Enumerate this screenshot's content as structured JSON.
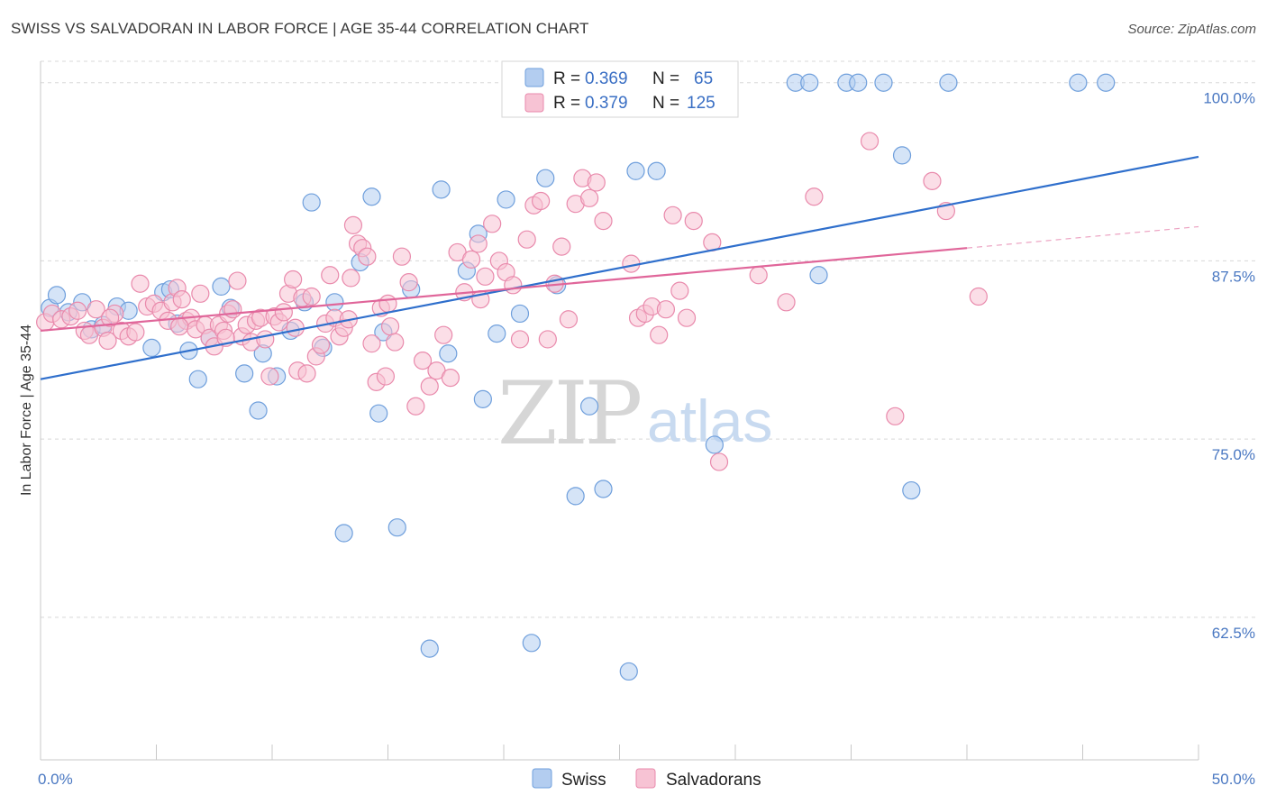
{
  "title": "SWISS VS SALVADORAN IN LABOR FORCE | AGE 35-44 CORRELATION CHART",
  "source": "Source: ZipAtlas.com",
  "watermark": {
    "zip": "ZIP",
    "atlas": "atlas"
  },
  "colors": {
    "swiss_fill": "#b3cdf0",
    "swiss_stroke": "#6f9fdc",
    "swiss_line": "#2f6fcc",
    "salv_fill": "#f7c3d4",
    "salv_stroke": "#e98aac",
    "salv_line": "#e0669a",
    "grid": "#d8d8d8",
    "axis_label": "#4a78c2"
  },
  "legend": {
    "rows": [
      {
        "r_label": "R = ",
        "r_value": "0.369",
        "n_label": "N = ",
        "n_value": "65"
      },
      {
        "r_label": "R = ",
        "r_value": "0.379",
        "n_label": "N = ",
        "n_value": "125"
      }
    ]
  },
  "chart_data": {
    "type": "scatter",
    "ylabel": "In Labor Force | Age 35-44",
    "xlim": [
      0,
      50
    ],
    "ylim": [
      52.5,
      101.5
    ],
    "y_ticks": [
      62.5,
      75.0,
      87.5,
      100.0
    ],
    "y_tick_labels": [
      "62.5%",
      "75.0%",
      "87.5%",
      "100.0%"
    ],
    "x_tick_labels": [
      "0.0%",
      "50.0%"
    ],
    "x_tick_label_values": [
      0,
      50
    ],
    "x_minor_ticks": [
      5,
      10,
      15,
      20,
      25,
      30,
      35,
      40,
      45
    ],
    "grid": true,
    "legend_position": "top-center",
    "series": [
      {
        "name": "Swiss",
        "r": 0.369,
        "n": 65,
        "trend": {
          "x": [
            0,
            50
          ],
          "y": [
            79.2,
            94.8
          ],
          "dashed_from": null
        },
        "points": [
          [
            0.4,
            84.2
          ],
          [
            0.7,
            85.1
          ],
          [
            1.2,
            83.9
          ],
          [
            1.8,
            84.6
          ],
          [
            2.2,
            82.7
          ],
          [
            2.7,
            83.0
          ],
          [
            3.3,
            84.3
          ],
          [
            3.8,
            84.0
          ],
          [
            4.8,
            81.4
          ],
          [
            5.3,
            85.3
          ],
          [
            5.6,
            85.5
          ],
          [
            5.9,
            83.1
          ],
          [
            6.4,
            81.2
          ],
          [
            6.8,
            79.2
          ],
          [
            7.3,
            82.1
          ],
          [
            7.8,
            85.7
          ],
          [
            8.2,
            84.2
          ],
          [
            8.8,
            79.6
          ],
          [
            9.4,
            77.0
          ],
          [
            9.6,
            81.0
          ],
          [
            10.2,
            79.4
          ],
          [
            10.8,
            82.6
          ],
          [
            11.4,
            84.6
          ],
          [
            11.7,
            91.6
          ],
          [
            12.2,
            81.4
          ],
          [
            12.7,
            84.6
          ],
          [
            13.1,
            68.4
          ],
          [
            13.8,
            87.4
          ],
          [
            14.3,
            92.0
          ],
          [
            14.6,
            76.8
          ],
          [
            14.8,
            82.5
          ],
          [
            15.4,
            68.8
          ],
          [
            16.0,
            85.5
          ],
          [
            16.8,
            60.3
          ],
          [
            17.3,
            92.5
          ],
          [
            17.6,
            81.0
          ],
          [
            18.4,
            86.8
          ],
          [
            18.9,
            89.4
          ],
          [
            19.1,
            77.8
          ],
          [
            19.7,
            82.4
          ],
          [
            20.1,
            91.8
          ],
          [
            20.7,
            83.8
          ],
          [
            21.2,
            60.7
          ],
          [
            21.8,
            93.3
          ],
          [
            22.3,
            85.8
          ],
          [
            23.1,
            71.0
          ],
          [
            23.7,
            77.3
          ],
          [
            24.3,
            71.5
          ],
          [
            24.8,
            100.0
          ],
          [
            25.4,
            58.7
          ],
          [
            25.7,
            93.8
          ],
          [
            26.6,
            93.8
          ],
          [
            27.8,
            100.0
          ],
          [
            29.1,
            74.6
          ],
          [
            32.6,
            100.0
          ],
          [
            33.2,
            100.0
          ],
          [
            33.6,
            86.5
          ],
          [
            34.8,
            100.0
          ],
          [
            35.3,
            100.0
          ],
          [
            36.4,
            100.0
          ],
          [
            37.2,
            94.9
          ],
          [
            37.6,
            71.4
          ],
          [
            39.2,
            100.0
          ],
          [
            44.8,
            100.0
          ],
          [
            46.0,
            100.0
          ]
        ]
      },
      {
        "name": "Salvadorans",
        "r": 0.379,
        "n": 125,
        "trend": {
          "x": [
            0,
            40
          ],
          "y": [
            82.6,
            88.4
          ],
          "dashed_to": 50,
          "dashed_end_y": 89.9
        },
        "points": [
          [
            0.2,
            83.2
          ],
          [
            0.5,
            83.8
          ],
          [
            0.9,
            83.4
          ],
          [
            1.3,
            83.6
          ],
          [
            1.6,
            84.0
          ],
          [
            1.9,
            82.6
          ],
          [
            2.1,
            82.3
          ],
          [
            2.4,
            84.1
          ],
          [
            2.7,
            82.8
          ],
          [
            2.9,
            81.9
          ],
          [
            3.2,
            83.8
          ],
          [
            3.5,
            82.6
          ],
          [
            3.8,
            82.2
          ],
          [
            4.1,
            82.5
          ],
          [
            4.3,
            85.9
          ],
          [
            4.6,
            84.3
          ],
          [
            4.9,
            84.5
          ],
          [
            5.2,
            84.0
          ],
          [
            5.5,
            83.3
          ],
          [
            5.7,
            84.6
          ],
          [
            5.9,
            85.6
          ],
          [
            6.1,
            84.8
          ],
          [
            6.3,
            83.3
          ],
          [
            6.5,
            83.5
          ],
          [
            6.7,
            82.7
          ],
          [
            6.9,
            85.2
          ],
          [
            7.1,
            83.0
          ],
          [
            7.3,
            82.1
          ],
          [
            7.5,
            81.5
          ],
          [
            7.7,
            83.0
          ],
          [
            7.9,
            82.6
          ],
          [
            8.1,
            83.8
          ],
          [
            8.3,
            84.1
          ],
          [
            8.5,
            86.1
          ],
          [
            8.7,
            82.2
          ],
          [
            8.9,
            83.0
          ],
          [
            9.1,
            81.8
          ],
          [
            9.3,
            83.3
          ],
          [
            9.5,
            83.5
          ],
          [
            9.7,
            82.0
          ],
          [
            9.9,
            79.4
          ],
          [
            10.1,
            83.6
          ],
          [
            10.3,
            83.2
          ],
          [
            10.5,
            83.9
          ],
          [
            10.7,
            85.2
          ],
          [
            10.9,
            86.2
          ],
          [
            11.1,
            79.8
          ],
          [
            11.3,
            84.9
          ],
          [
            11.5,
            79.6
          ],
          [
            11.7,
            85.0
          ],
          [
            11.9,
            80.8
          ],
          [
            12.1,
            81.6
          ],
          [
            12.3,
            83.1
          ],
          [
            12.5,
            86.5
          ],
          [
            12.7,
            83.5
          ],
          [
            12.9,
            82.2
          ],
          [
            13.1,
            82.8
          ],
          [
            13.3,
            83.4
          ],
          [
            13.5,
            90.0
          ],
          [
            13.7,
            88.7
          ],
          [
            13.9,
            88.4
          ],
          [
            14.1,
            87.8
          ],
          [
            14.3,
            81.7
          ],
          [
            14.5,
            79.0
          ],
          [
            14.7,
            84.2
          ],
          [
            14.9,
            79.4
          ],
          [
            15.1,
            82.9
          ],
          [
            15.3,
            81.8
          ],
          [
            15.6,
            87.8
          ],
          [
            15.9,
            86.0
          ],
          [
            16.2,
            77.3
          ],
          [
            16.5,
            80.5
          ],
          [
            16.8,
            78.7
          ],
          [
            17.1,
            79.8
          ],
          [
            17.4,
            82.3
          ],
          [
            17.7,
            79.3
          ],
          [
            18.0,
            88.1
          ],
          [
            18.3,
            85.3
          ],
          [
            18.6,
            87.6
          ],
          [
            18.9,
            88.7
          ],
          [
            19.2,
            86.4
          ],
          [
            19.5,
            90.1
          ],
          [
            19.8,
            87.5
          ],
          [
            20.1,
            86.7
          ],
          [
            20.4,
            85.8
          ],
          [
            20.7,
            82.0
          ],
          [
            21.0,
            89.0
          ],
          [
            21.3,
            91.4
          ],
          [
            21.6,
            91.7
          ],
          [
            21.9,
            82.0
          ],
          [
            22.2,
            85.9
          ],
          [
            22.5,
            88.5
          ],
          [
            22.8,
            83.4
          ],
          [
            23.1,
            91.5
          ],
          [
            23.4,
            93.3
          ],
          [
            23.7,
            91.9
          ],
          [
            24.0,
            93.0
          ],
          [
            24.3,
            90.3
          ],
          [
            25.5,
            87.3
          ],
          [
            25.8,
            83.5
          ],
          [
            26.1,
            83.8
          ],
          [
            26.4,
            84.3
          ],
          [
            26.7,
            82.3
          ],
          [
            27.0,
            84.1
          ],
          [
            27.3,
            90.7
          ],
          [
            27.6,
            85.4
          ],
          [
            27.9,
            83.5
          ],
          [
            28.2,
            90.3
          ],
          [
            29.0,
            88.8
          ],
          [
            29.3,
            73.4
          ],
          [
            31.0,
            86.5
          ],
          [
            32.2,
            84.6
          ],
          [
            33.4,
            92.0
          ],
          [
            35.8,
            95.9
          ],
          [
            36.9,
            76.6
          ],
          [
            38.5,
            93.1
          ],
          [
            39.1,
            91.0
          ],
          [
            40.5,
            85.0
          ],
          [
            13.4,
            86.3
          ],
          [
            19.0,
            84.8
          ],
          [
            3.0,
            83.5
          ],
          [
            6.0,
            82.9
          ],
          [
            8.0,
            82.1
          ],
          [
            11.0,
            82.8
          ],
          [
            15.0,
            84.5
          ]
        ]
      }
    ]
  },
  "bottom_legend": [
    "Swiss",
    "Salvadorans"
  ]
}
